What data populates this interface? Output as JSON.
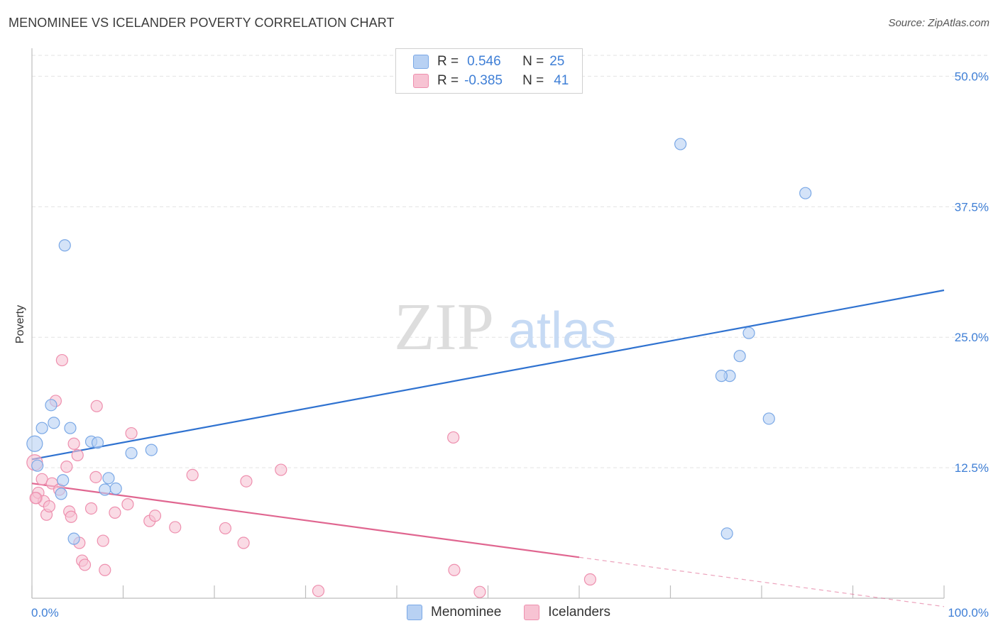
{
  "title": "MENOMINEE VS ICELANDER POVERTY CORRELATION CHART",
  "source": "Source: ZipAtlas.com",
  "watermark": {
    "zip": "ZIP",
    "atlas": "atlas"
  },
  "legend": {
    "rows": [
      {
        "r_label": "R =",
        "r_value": "0.546",
        "n_label": "N =",
        "n_value": "25"
      },
      {
        "r_label": "R =",
        "r_value": "-0.385",
        "n_label": "N =",
        "n_value": "41"
      }
    ]
  },
  "bottom_legend": {
    "series1": "Menominee",
    "series2": "Icelanders"
  },
  "colors": {
    "menominee_fill": "#b8d1f3",
    "menominee_stroke": "#7aa8e6",
    "menominee_line": "#2f72d0",
    "icelander_fill": "#f7c3d3",
    "icelander_stroke": "#ee8fae",
    "icelander_line": "#e06690",
    "accent_text": "#3f7fd6"
  },
  "chart_data": {
    "type": "scatter",
    "title": "MENOMINEE VS ICELANDER POVERTY CORRELATION CHART",
    "xlabel": "",
    "ylabel": "Poverty",
    "xlim": [
      0,
      100
    ],
    "ylim": [
      0,
      52
    ],
    "y_ticks": [
      {
        "value": 12.5,
        "label": "12.5%"
      },
      {
        "value": 25.0,
        "label": "25.0%"
      },
      {
        "value": 37.5,
        "label": "37.5%"
      },
      {
        "value": 50.0,
        "label": "50.0%"
      }
    ],
    "x_tick_labels": {
      "min": "0.0%",
      "max": "100.0%"
    },
    "grid": true,
    "series": [
      {
        "name": "Menominee",
        "r": 0.546,
        "n": 25,
        "trend": {
          "x0": 0,
          "y0": 13.3,
          "x1": 100,
          "y1": 29.5,
          "solid_to": 100
        },
        "points": [
          [
            0.3,
            14.8
          ],
          [
            0.6,
            12.7
          ],
          [
            1.1,
            16.3
          ],
          [
            2.1,
            18.5
          ],
          [
            2.4,
            16.8
          ],
          [
            3.6,
            33.8
          ],
          [
            3.2,
            10.0
          ],
          [
            3.4,
            11.3
          ],
          [
            4.2,
            16.3
          ],
          [
            4.6,
            5.7
          ],
          [
            6.5,
            15.0
          ],
          [
            7.2,
            14.9
          ],
          [
            8.0,
            10.4
          ],
          [
            8.4,
            11.5
          ],
          [
            9.2,
            10.5
          ],
          [
            10.9,
            13.9
          ],
          [
            13.1,
            14.2
          ],
          [
            71.1,
            43.5
          ],
          [
            76.5,
            21.3
          ],
          [
            77.6,
            23.2
          ],
          [
            76.2,
            6.2
          ],
          [
            78.6,
            25.4
          ],
          [
            80.8,
            17.2
          ],
          [
            84.8,
            38.8
          ],
          [
            75.6,
            21.3
          ]
        ]
      },
      {
        "name": "Icelanders",
        "r": -0.385,
        "n": 41,
        "trend": {
          "x0": 0,
          "y0": 11.0,
          "x1": 100,
          "y1": -0.8,
          "solid_to": 60
        },
        "points": [
          [
            0.3,
            13.0
          ],
          [
            0.5,
            9.6
          ],
          [
            0.7,
            10.1
          ],
          [
            1.1,
            11.4
          ],
          [
            1.3,
            9.3
          ],
          [
            1.6,
            8.0
          ],
          [
            1.9,
            8.8
          ],
          [
            2.2,
            11.0
          ],
          [
            2.6,
            18.9
          ],
          [
            3.0,
            10.4
          ],
          [
            3.3,
            22.8
          ],
          [
            3.8,
            12.6
          ],
          [
            4.1,
            8.3
          ],
          [
            4.3,
            7.8
          ],
          [
            4.6,
            14.8
          ],
          [
            5.0,
            13.7
          ],
          [
            5.2,
            5.3
          ],
          [
            5.5,
            3.6
          ],
          [
            5.8,
            3.2
          ],
          [
            6.5,
            8.6
          ],
          [
            7.0,
            11.6
          ],
          [
            7.1,
            18.4
          ],
          [
            7.8,
            5.5
          ],
          [
            8.0,
            2.7
          ],
          [
            9.1,
            8.2
          ],
          [
            10.5,
            9.0
          ],
          [
            10.9,
            15.8
          ],
          [
            12.9,
            7.4
          ],
          [
            13.5,
            7.9
          ],
          [
            15.7,
            6.8
          ],
          [
            17.6,
            11.8
          ],
          [
            21.2,
            6.7
          ],
          [
            23.2,
            5.3
          ],
          [
            23.5,
            11.2
          ],
          [
            27.3,
            12.3
          ],
          [
            31.4,
            0.7
          ],
          [
            46.3,
            2.7
          ],
          [
            46.2,
            15.4
          ],
          [
            49.1,
            0.6
          ],
          [
            61.2,
            1.8
          ],
          [
            0.4,
            9.6
          ]
        ]
      }
    ]
  }
}
